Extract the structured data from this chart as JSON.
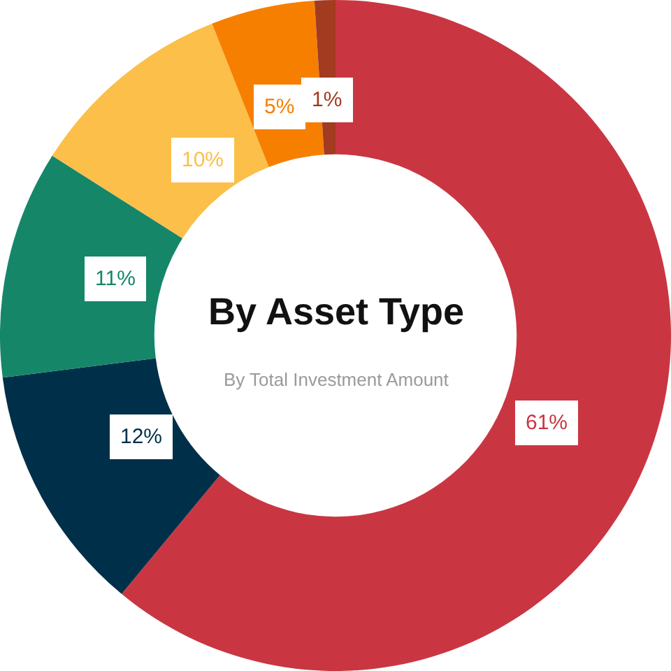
{
  "chart_data": {
    "type": "donut",
    "title": "By Asset Type",
    "subtitle": "By Total Investment Amount",
    "categories": [
      null,
      null,
      null,
      null,
      null,
      null
    ],
    "values": [
      61,
      12,
      11,
      10,
      5,
      1
    ],
    "value_labels": [
      "61%",
      "12%",
      "11%",
      "10%",
      "5%",
      "1%"
    ],
    "colors": [
      "#c93642",
      "#003049",
      "#168669",
      "#fcbf49",
      "#f77f00",
      "#a33b20"
    ],
    "legend": false
  }
}
